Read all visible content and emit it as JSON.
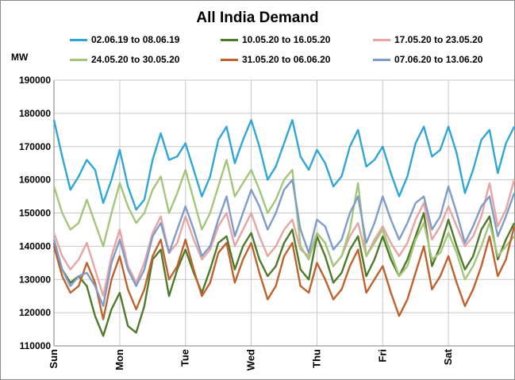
{
  "chart_data": {
    "type": "line",
    "title": "All India Demand",
    "ylabel": "MW",
    "xlabel": "",
    "ylim": [
      110000,
      190000
    ],
    "yticks": [
      110000,
      120000,
      130000,
      140000,
      150000,
      160000,
      170000,
      180000,
      190000
    ],
    "ytick_labels": [
      "110000",
      "120000",
      "130000",
      "140000",
      "150000",
      "160000",
      "170000",
      "180000",
      "190000"
    ],
    "x_unit": "hours since start of Sunday",
    "xlim": [
      0,
      168
    ],
    "x_categories": [
      "Sun",
      "Mon",
      "Tue",
      "Wed",
      "Thu",
      "Fri",
      "Sat"
    ],
    "x_category_starts": [
      0,
      24,
      48,
      72,
      96,
      120,
      144
    ],
    "grid": true,
    "legend_position": "top",
    "series": [
      {
        "name": "02.06.19 to 08.06.19",
        "color": "#2ea7d8",
        "x": [
          0,
          3,
          6,
          9,
          12,
          15,
          18,
          21,
          24,
          27,
          30,
          33,
          36,
          39,
          42,
          45,
          48,
          51,
          54,
          57,
          60,
          63,
          66,
          69,
          72,
          75,
          78,
          81,
          84,
          87,
          90,
          93,
          96,
          99,
          102,
          105,
          108,
          111,
          114,
          117,
          120,
          123,
          126,
          129,
          132,
          135,
          138,
          141,
          144,
          147,
          150,
          153,
          156,
          159,
          162,
          165,
          168
        ],
        "y": [
          178000,
          167000,
          157000,
          161000,
          166000,
          163000,
          153000,
          160000,
          169000,
          158000,
          151000,
          154000,
          166000,
          174000,
          166000,
          167000,
          171000,
          163000,
          155000,
          161000,
          172000,
          176000,
          165000,
          172000,
          178000,
          170000,
          160000,
          164000,
          171000,
          178000,
          167000,
          163000,
          169000,
          165000,
          158000,
          161000,
          170000,
          175000,
          164000,
          166000,
          170000,
          162000,
          155000,
          161000,
          171000,
          176000,
          167000,
          169000,
          176000,
          168000,
          156000,
          163000,
          172000,
          175000,
          162000,
          171000,
          176000
        ]
      },
      {
        "name": "10.05.20 to 16.05.20",
        "color": "#4f7a2a",
        "x": [
          0,
          3,
          6,
          9,
          12,
          15,
          18,
          21,
          24,
          27,
          30,
          33,
          36,
          39,
          42,
          45,
          48,
          51,
          54,
          57,
          60,
          63,
          66,
          69,
          72,
          75,
          78,
          81,
          84,
          87,
          90,
          93,
          96,
          99,
          102,
          105,
          108,
          111,
          114,
          117,
          120,
          123,
          126,
          129,
          132,
          135,
          138,
          141,
          144,
          147,
          150,
          153,
          156,
          159,
          162,
          165,
          168
        ],
        "y": [
          141000,
          133000,
          129000,
          131000,
          128000,
          119000,
          113000,
          121000,
          126000,
          116000,
          114000,
          122000,
          136000,
          139000,
          125000,
          133000,
          139000,
          132000,
          126000,
          133000,
          141000,
          143000,
          133000,
          140000,
          144000,
          136000,
          131000,
          134000,
          141000,
          145000,
          133000,
          130000,
          143000,
          137000,
          129000,
          132000,
          139000,
          143000,
          131000,
          136000,
          143000,
          136000,
          131000,
          136000,
          143000,
          150000,
          134000,
          140000,
          148000,
          140000,
          133000,
          137000,
          145000,
          149000,
          136000,
          142000,
          147000
        ]
      },
      {
        "name": "17.05.20 to 23.05.20",
        "color": "#e8a3a3",
        "x": [
          0,
          3,
          6,
          9,
          12,
          15,
          18,
          21,
          24,
          27,
          30,
          33,
          36,
          39,
          42,
          45,
          48,
          51,
          54,
          57,
          60,
          63,
          66,
          69,
          72,
          75,
          78,
          81,
          84,
          87,
          90,
          93,
          96,
          99,
          102,
          105,
          108,
          111,
          114,
          117,
          120,
          123,
          126,
          129,
          132,
          135,
          138,
          141,
          144,
          147,
          150,
          153,
          156,
          159,
          162,
          165,
          168
        ],
        "y": [
          144000,
          137000,
          133000,
          136000,
          141000,
          133000,
          125000,
          137000,
          145000,
          134000,
          129000,
          135000,
          144000,
          149000,
          138000,
          141000,
          149000,
          142000,
          136000,
          139000,
          146000,
          150000,
          140000,
          145000,
          150000,
          143000,
          137000,
          140000,
          145000,
          148000,
          139000,
          137000,
          144000,
          141000,
          134000,
          137000,
          143000,
          147000,
          137000,
          142000,
          146000,
          141000,
          137000,
          141000,
          148000,
          153000,
          142000,
          146000,
          152000,
          146000,
          140000,
          143000,
          149000,
          159000,
          146000,
          151000,
          160000
        ]
      },
      {
        "name": "24.05.20 to 30.05.20",
        "color": "#a3c77a",
        "x": [
          0,
          3,
          6,
          9,
          12,
          15,
          18,
          21,
          24,
          27,
          30,
          33,
          36,
          39,
          42,
          45,
          48,
          51,
          54,
          57,
          60,
          63,
          66,
          69,
          72,
          75,
          78,
          81,
          84,
          87,
          90,
          93,
          96,
          99,
          102,
          105,
          108,
          111,
          114,
          117,
          120,
          123,
          126,
          129,
          132,
          135,
          138,
          141,
          144,
          147,
          150,
          153,
          156,
          159,
          162,
          165,
          168
        ],
        "y": [
          158000,
          150000,
          145000,
          147000,
          154000,
          147000,
          140000,
          150000,
          159000,
          152000,
          147000,
          150000,
          157000,
          161000,
          150000,
          156000,
          163000,
          154000,
          145000,
          150000,
          158000,
          166000,
          155000,
          159000,
          163000,
          157000,
          150000,
          154000,
          160000,
          163000,
          140000,
          136000,
          144000,
          141000,
          134000,
          137000,
          145000,
          159000,
          137000,
          141000,
          145000,
          138000,
          131000,
          134000,
          142000,
          147000,
          136000,
          138000,
          144000,
          138000,
          130000,
          134000,
          140000,
          147000,
          137000,
          140000,
          143000
        ]
      },
      {
        "name": "31.05.20 to 06.06.20",
        "color": "#c0622d",
        "x": [
          0,
          3,
          6,
          9,
          12,
          15,
          18,
          21,
          24,
          27,
          30,
          33,
          36,
          39,
          42,
          45,
          48,
          51,
          54,
          57,
          60,
          63,
          66,
          69,
          72,
          75,
          78,
          81,
          84,
          87,
          90,
          93,
          96,
          99,
          102,
          105,
          108,
          111,
          114,
          117,
          120,
          123,
          126,
          129,
          132,
          135,
          138,
          141,
          144,
          147,
          150,
          153,
          156,
          159,
          162,
          165,
          168
        ],
        "y": [
          140000,
          131000,
          126000,
          128000,
          135000,
          129000,
          118000,
          130000,
          137000,
          127000,
          121000,
          127000,
          137000,
          142000,
          130000,
          134000,
          142000,
          133000,
          125000,
          129000,
          138000,
          141000,
          129000,
          136000,
          141000,
          132000,
          124000,
          128000,
          137000,
          141000,
          128000,
          126000,
          135000,
          130000,
          124000,
          127000,
          134000,
          139000,
          126000,
          130000,
          134000,
          126000,
          119000,
          124000,
          132000,
          140000,
          127000,
          131000,
          137000,
          129000,
          122000,
          127000,
          134000,
          143000,
          131000,
          136000,
          146000
        ]
      },
      {
        "name": "07.06.20 to 13.06.20",
        "color": "#7f9cc9",
        "x": [
          0,
          3,
          6,
          9,
          12,
          15,
          18,
          21,
          24,
          27,
          30,
          33,
          36,
          39,
          42,
          45,
          48,
          51,
          54,
          57,
          60,
          63,
          66,
          69,
          72,
          75,
          78,
          81,
          84,
          87,
          90,
          93,
          96,
          99,
          102,
          105,
          108,
          111,
          114,
          117,
          120,
          123,
          126,
          129,
          132,
          135,
          138,
          141,
          144,
          147,
          150,
          153,
          156,
          159,
          162,
          165,
          168
        ],
        "y": [
          142000,
          133000,
          128000,
          131000,
          132000,
          128000,
          122000,
          135000,
          142000,
          133000,
          128000,
          133000,
          143000,
          147000,
          138000,
          145000,
          152000,
          145000,
          137000,
          140000,
          148000,
          155000,
          143000,
          150000,
          157000,
          152000,
          145000,
          150000,
          157000,
          160000,
          145000,
          138000,
          148000,
          146000,
          139000,
          142000,
          150000,
          155000,
          141000,
          147000,
          155000,
          148000,
          142000,
          147000,
          153000,
          155000,
          145000,
          149000,
          158000,
          150000,
          141000,
          146000,
          152000,
          155000,
          143000,
          149000,
          156000
        ]
      }
    ]
  }
}
